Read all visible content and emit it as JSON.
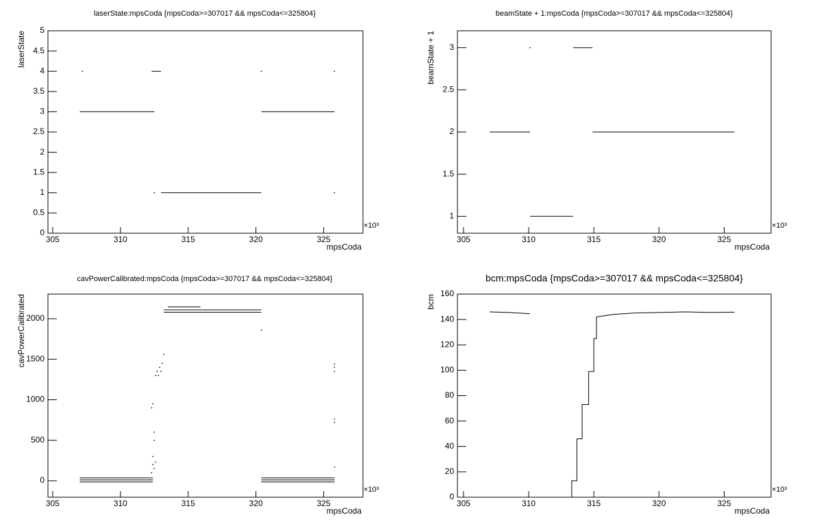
{
  "chart_data": [
    {
      "type": "scatter",
      "title": "laserState:mpsCoda {mpsCoda>=307017 && mpsCoda<=325804}",
      "x_label": "mpsCoda",
      "y_label": "laserState",
      "x_exponent_label": "×10³",
      "xlim": [
        304.65,
        327.9
      ],
      "xticks": [
        305,
        310,
        315,
        320,
        325
      ],
      "ylim": [
        0,
        5
      ],
      "yticks": [
        0,
        0.5,
        1,
        1.5,
        2,
        2.5,
        3,
        3.5,
        4,
        4.5,
        5
      ],
      "color": "#000000",
      "series": [
        {
          "mode": "line",
          "x": [
            307.0,
            312.5,
            null,
            312.3,
            313.0,
            null,
            313.0,
            320.4,
            null,
            320.4,
            325.8
          ],
          "values": [
            3,
            3,
            null,
            4,
            4,
            null,
            1,
            1,
            null,
            3,
            3
          ]
        },
        {
          "mode": "markers",
          "x": [
            307.2,
            320.4,
            325.8,
            312.5,
            325.8
          ],
          "values": [
            4,
            4,
            4,
            1,
            1
          ]
        }
      ]
    },
    {
      "type": "scatter",
      "title": "beamState + 1:mpsCoda {mpsCoda>=307017 && mpsCoda<=325804}",
      "x_label": "mpsCoda",
      "y_label": "beamState + 1",
      "x_exponent_label": "×10³",
      "xlim": [
        304.53,
        328.6
      ],
      "xticks": [
        305,
        310,
        315,
        320,
        325
      ],
      "ylim": [
        0.8,
        3.2
      ],
      "yticks": [
        1,
        1.5,
        2,
        2.5,
        3
      ],
      "color": "#000000",
      "series": [
        {
          "mode": "line",
          "x": [
            307.0,
            310.1,
            null,
            310.1,
            313.4,
            null,
            313.4,
            314.9,
            null,
            314.9,
            325.8
          ],
          "values": [
            2,
            2,
            null,
            1,
            1,
            null,
            3,
            3,
            null,
            2,
            2
          ]
        },
        {
          "mode": "markers",
          "x": [
            310.1
          ],
          "values": [
            3
          ]
        }
      ]
    },
    {
      "type": "scatter",
      "title": "cavPowerCalibrated:mpsCoda {mpsCoda>=307017 && mpsCoda<=325804}",
      "x_label": "mpsCoda",
      "y_label": "cavPowerCalibrated",
      "x_exponent_label": "×10³",
      "xlim": [
        304.65,
        327.9
      ],
      "xticks": [
        305,
        310,
        315,
        320,
        325
      ],
      "ylim": [
        -203,
        2304
      ],
      "yticks": [
        0,
        500,
        1000,
        1500,
        2000
      ],
      "color": "#000000",
      "series": [
        {
          "mode": "line",
          "x": [
            307.0,
            312.4,
            null,
            307.0,
            312.4,
            null,
            307.0,
            312.4,
            null,
            313.2,
            320.4,
            null,
            313.2,
            320.4,
            null,
            313.5,
            315.9,
            null,
            320.4,
            325.8,
            null,
            320.4,
            325.8,
            null,
            320.4,
            325.8
          ],
          "values": [
            -15,
            -15,
            null,
            10,
            10,
            null,
            35,
            35,
            null,
            2080,
            2080,
            null,
            2110,
            2110,
            null,
            2145,
            2145,
            null,
            -15,
            -15,
            null,
            10,
            10,
            null,
            35,
            35
          ]
        },
        {
          "mode": "markers",
          "x": [
            312.3,
            312.4,
            312.4,
            312.5,
            312.5,
            312.3,
            312.4,
            312.6,
            312.7,
            312.8,
            313.0,
            313.1,
            313.2,
            312.9,
            320.4,
            325.8,
            325.8,
            325.8,
            325.8,
            325.8,
            325.8,
            312.5,
            312.6
          ],
          "values": [
            100,
            200,
            300,
            500,
            600,
            900,
            950,
            1300,
            1350,
            1300,
            1350,
            1450,
            1560,
            1400,
            1860,
            1350,
            1400,
            1440,
            720,
            760,
            170,
            150,
            230
          ]
        }
      ]
    },
    {
      "type": "scatter",
      "title": "bcm:mpsCoda {mpsCoda>=307017 && mpsCoda<=325804}",
      "x_label": "mpsCoda",
      "y_label": "bcm",
      "x_exponent_label": "×10³",
      "xlim": [
        304.53,
        328.6
      ],
      "xticks": [
        305,
        310,
        315,
        320,
        325
      ],
      "ylim": [
        0,
        160
      ],
      "yticks": [
        0,
        20,
        40,
        60,
        80,
        100,
        120,
        140,
        160
      ],
      "color": "#000000",
      "series": [
        {
          "mode": "line",
          "x": [
            307.0,
            308.5,
            310.1,
            null,
            313.3,
            313.3,
            313.7,
            313.7,
            314.1,
            314.1,
            314.6,
            314.6,
            315.0,
            315.0,
            315.2,
            315.2,
            316.5,
            318,
            320,
            322,
            324,
            325.8
          ],
          "values": [
            146,
            145.5,
            144.5,
            null,
            0,
            13,
            13,
            46,
            46,
            73,
            73,
            99,
            99,
            125,
            125,
            142,
            144,
            145,
            145.5,
            146,
            145.5,
            145.8
          ]
        }
      ]
    }
  ]
}
